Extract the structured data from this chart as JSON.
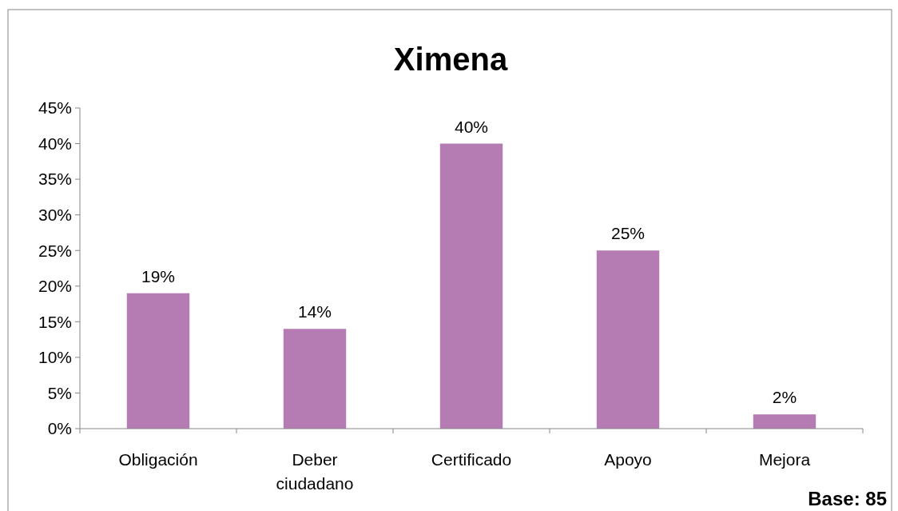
{
  "chart_data": {
    "type": "bar",
    "title": "Ximena",
    "categories": [
      "Obligación",
      "Deber ciudadano",
      "Certificado",
      "Apoyo",
      "Mejora"
    ],
    "values": [
      19,
      14,
      40,
      25,
      2
    ],
    "value_labels": [
      "19%",
      "14%",
      "40%",
      "25%",
      "2%"
    ],
    "color": "#b57bb3",
    "ylim": [
      0,
      45
    ],
    "yticks": [
      {
        "value": 0,
        "label": "0%"
      },
      {
        "value": 5,
        "label": "5%"
      },
      {
        "value": 10,
        "label": "10%"
      },
      {
        "value": 15,
        "label": "15%"
      },
      {
        "value": 20,
        "label": "20%"
      },
      {
        "value": 25,
        "label": "25%"
      },
      {
        "value": 30,
        "label": "30%"
      },
      {
        "value": 35,
        "label": "35%"
      },
      {
        "value": 40,
        "label": "40%"
      },
      {
        "value": 45,
        "label": "45%"
      }
    ],
    "grid": false,
    "annotations": [
      "Base: 85"
    ]
  }
}
